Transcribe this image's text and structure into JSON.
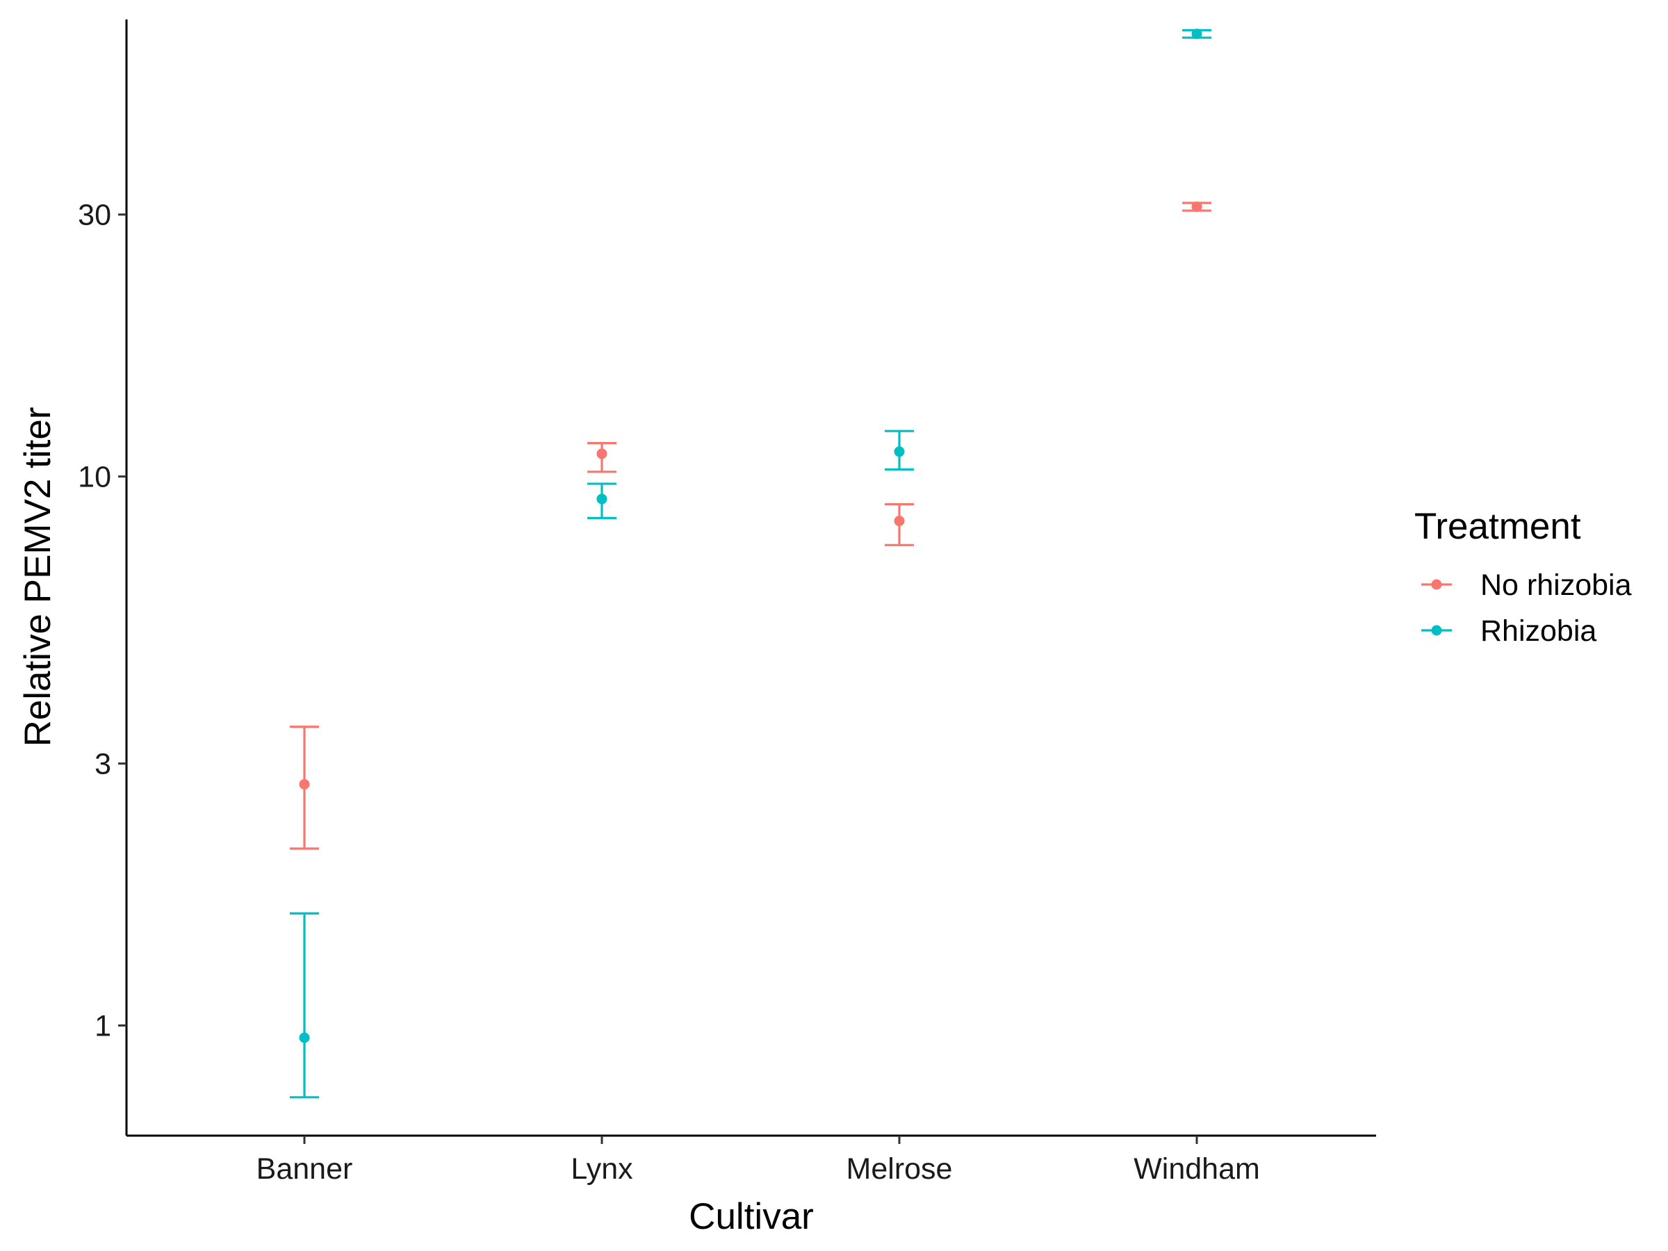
{
  "chart_data": {
    "type": "scatter",
    "subtype": "point-with-errorbars",
    "title": "",
    "xlabel": "Cultivar",
    "ylabel": "Relative PEMV2 titer",
    "categories": [
      "Banner",
      "Lynx",
      "Melrose",
      "Windham"
    ],
    "y_scale": "log10",
    "y_ticks": [
      1,
      3,
      10,
      30
    ],
    "y_tick_labels": [
      "1",
      "3",
      "10",
      "30"
    ],
    "ylim": [
      0.63,
      68
    ],
    "grid": false,
    "legend": {
      "title": "Treatment",
      "position": "right"
    },
    "series": [
      {
        "name": "No rhizobia",
        "color": "#F8766D",
        "points": [
          {
            "category": "Banner",
            "value": 2.75,
            "lower": 2.1,
            "upper": 3.5
          },
          {
            "category": "Lynx",
            "value": 11.0,
            "lower": 10.2,
            "upper": 11.5
          },
          {
            "category": "Melrose",
            "value": 8.3,
            "lower": 7.5,
            "upper": 8.9
          },
          {
            "category": "Windham",
            "value": 31.0,
            "lower": 30.5,
            "upper": 31.5
          }
        ]
      },
      {
        "name": "Rhizobia",
        "color": "#00BFC4",
        "points": [
          {
            "category": "Banner",
            "value": 0.95,
            "lower": 0.74,
            "upper": 1.6
          },
          {
            "category": "Lynx",
            "value": 9.1,
            "lower": 8.4,
            "upper": 9.7
          },
          {
            "category": "Melrose",
            "value": 11.1,
            "lower": 10.3,
            "upper": 12.1
          },
          {
            "category": "Windham",
            "value": 64.0,
            "lower": 63.0,
            "upper": 65.0
          }
        ]
      }
    ]
  }
}
